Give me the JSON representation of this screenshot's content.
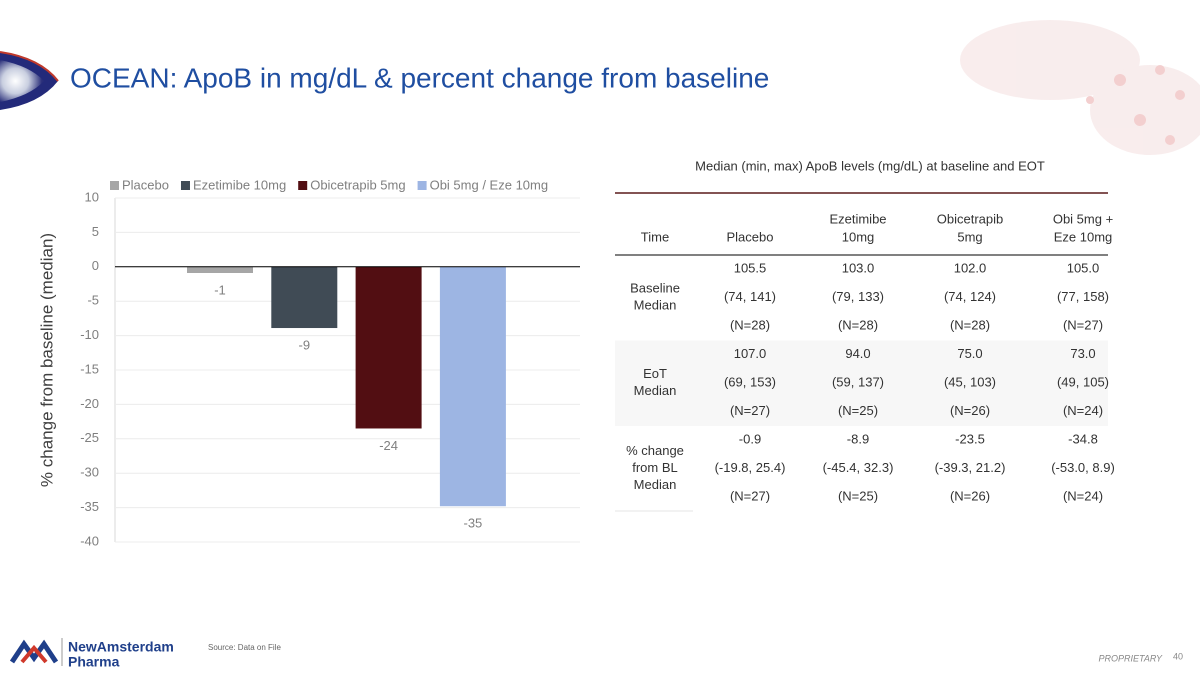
{
  "title": "OCEAN: ApoB in mg/dL & percent change from baseline",
  "chart_data": {
    "type": "bar",
    "categories": [
      "Placebo",
      "Ezetimibe 10mg",
      "Obicetrapib 5mg",
      "Obi 5mg / Eze 10mg"
    ],
    "values": [
      -0.9,
      -8.9,
      -23.5,
      -34.8
    ],
    "value_labels": [
      "-1",
      "-9",
      "-24",
      "-35"
    ],
    "colors": [
      "#a6a6a6",
      "#404b55",
      "#520e12",
      "#9db5e3"
    ],
    "y_label": "% change from baseline (median)",
    "ylim": [
      -40,
      10
    ],
    "yticks": [
      -40,
      -35,
      -30,
      -25,
      -20,
      -15,
      -10,
      -5,
      0,
      5,
      10
    ],
    "grid": true,
    "legend": "top"
  },
  "table": {
    "title": "Median (min, max) ApoB levels (mg/dL) at baseline and EOT",
    "header": [
      [
        "Time"
      ],
      [
        "Placebo"
      ],
      [
        "Ezetimibe",
        "10mg"
      ],
      [
        "Obicetrapib",
        "5mg"
      ],
      [
        "Obi 5mg +",
        "Eze  10mg"
      ]
    ],
    "groups": [
      {
        "label": [
          "Baseline",
          "Median"
        ],
        "rows": [
          [
            "105.5",
            "103.0",
            "102.0",
            "105.0"
          ],
          [
            "(74, 141)",
            "(79, 133)",
            "(74, 124)",
            "(77, 158)"
          ],
          [
            "(N=28)",
            "(N=28)",
            "(N=28)",
            "(N=27)"
          ]
        ]
      },
      {
        "label": [
          "EoT",
          "Median"
        ],
        "rows": [
          [
            "107.0",
            "94.0",
            "75.0",
            "73.0"
          ],
          [
            "(69, 153)",
            "(59, 137)",
            "(45, 103)",
            "(49, 105)"
          ],
          [
            "(N=27)",
            "(N=25)",
            "(N=26)",
            "(N=24)"
          ]
        ]
      },
      {
        "label": [
          "% change",
          "from BL",
          "Median"
        ],
        "rows": [
          [
            "-0.9",
            "-8.9",
            "-23.5",
            "-34.8"
          ],
          [
            "(-19.8, 25.4)",
            "(-45.4, 32.3)",
            "(-39.3, 21.2)",
            "(-53.0, 8.9)"
          ],
          [
            "(N=27)",
            "(N=25)",
            "(N=26)",
            "(N=24)"
          ]
        ]
      }
    ]
  },
  "source": "Source: Data on File",
  "logo": [
    "NewAmsterdam",
    "Pharma"
  ],
  "footer": {
    "label": "PROPRIETARY",
    "page": "40"
  }
}
